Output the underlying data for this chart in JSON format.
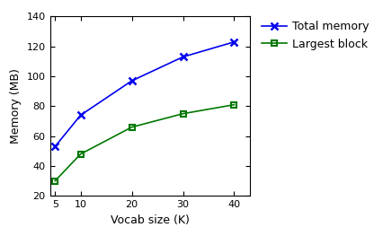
{
  "x": [
    5,
    10,
    20,
    30,
    40
  ],
  "total_memory": [
    53,
    74,
    97,
    113,
    123
  ],
  "largest_block": [
    30,
    48,
    66,
    75,
    81
  ],
  "total_color": "#0000ee",
  "largest_color": "#007700",
  "xlabel": "Vocab size (K)",
  "ylabel": "Memory (MB)",
  "ylim": [
    20,
    140
  ],
  "xlim": [
    4,
    43
  ],
  "yticks": [
    20,
    40,
    60,
    80,
    100,
    120,
    140
  ],
  "xticks": [
    5,
    10,
    20,
    30,
    40
  ],
  "legend_total": "Total memory",
  "legend_largest": "Largest block",
  "figsize": [
    4.27,
    2.63
  ],
  "dpi": 100
}
